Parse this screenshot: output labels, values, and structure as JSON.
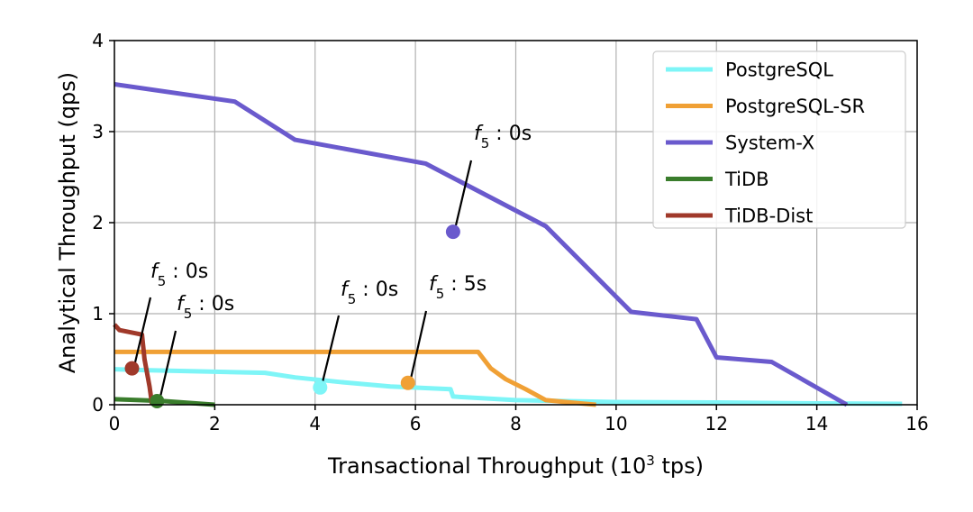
{
  "chart_data": {
    "type": "line",
    "xlabel_main": "Transactional Throughput (10",
    "xlabel_sup": "3",
    "xlabel_tail": " tps)",
    "ylabel": "Analytical Throughput (qps)",
    "xlim": [
      0,
      16
    ],
    "ylim": [
      0,
      4
    ],
    "xticks": [
      "0",
      "2",
      "4",
      "6",
      "8",
      "10",
      "12",
      "14",
      "16"
    ],
    "yticks": [
      "0",
      "1",
      "2",
      "3",
      "4"
    ],
    "grid": true,
    "legend_position": "top-right",
    "series": [
      {
        "name": "PostgreSQL",
        "color": "#7ef5f7",
        "points": [
          [
            0,
            0.39
          ],
          [
            0.6,
            0.38
          ],
          [
            3.0,
            0.35
          ],
          [
            3.6,
            0.3
          ],
          [
            4.5,
            0.25
          ],
          [
            5.5,
            0.2
          ],
          [
            6.7,
            0.17
          ],
          [
            6.75,
            0.09
          ],
          [
            8.0,
            0.05
          ],
          [
            10.0,
            0.03
          ],
          [
            12.0,
            0.025
          ],
          [
            14.0,
            0.015
          ],
          [
            15.7,
            0.01
          ]
        ],
        "marker": {
          "x": 4.1,
          "y": 0.19,
          "label_main": "f",
          "label_sub": "5",
          "label_tail": " : 0s"
        }
      },
      {
        "name": "PostgreSQL-SR",
        "color": "#f0a035",
        "points": [
          [
            0,
            0.58
          ],
          [
            7.25,
            0.58
          ],
          [
            7.5,
            0.4
          ],
          [
            7.8,
            0.28
          ],
          [
            8.2,
            0.17
          ],
          [
            8.6,
            0.05
          ],
          [
            9.0,
            0.03
          ],
          [
            9.6,
            0.0
          ]
        ],
        "marker": {
          "x": 5.85,
          "y": 0.24,
          "label_main": "f",
          "label_sub": "5",
          "label_tail": " : 5s"
        }
      },
      {
        "name": "System-X",
        "color": "#6a5acd",
        "points": [
          [
            0,
            3.52
          ],
          [
            2.4,
            3.33
          ],
          [
            3.6,
            2.91
          ],
          [
            6.2,
            2.65
          ],
          [
            8.6,
            1.96
          ],
          [
            10.3,
            1.02
          ],
          [
            11.6,
            0.94
          ],
          [
            12.0,
            0.52
          ],
          [
            13.1,
            0.47
          ],
          [
            14.6,
            0.0
          ]
        ],
        "marker": {
          "x": 6.75,
          "y": 1.9,
          "label_main": "f",
          "label_sub": "5",
          "label_tail": " : 0s"
        }
      },
      {
        "name": "TiDB",
        "color": "#3a7d2c",
        "points": [
          [
            0,
            0.06
          ],
          [
            0.5,
            0.05
          ],
          [
            1.0,
            0.04
          ],
          [
            2.0,
            0.0
          ]
        ],
        "marker": {
          "x": 0.85,
          "y": 0.04,
          "label_main": "f",
          "label_sub": "5",
          "label_tail": " : 0s"
        }
      },
      {
        "name": "TiDB-Dist",
        "color": "#a0392a",
        "points": [
          [
            0,
            0.88
          ],
          [
            0.1,
            0.82
          ],
          [
            0.55,
            0.77
          ],
          [
            0.6,
            0.5
          ],
          [
            0.7,
            0.2
          ],
          [
            0.75,
            0.0
          ]
        ],
        "marker": {
          "x": 0.35,
          "y": 0.4,
          "label_main": "f",
          "label_sub": "5",
          "label_tail": " : 0s"
        }
      }
    ]
  }
}
